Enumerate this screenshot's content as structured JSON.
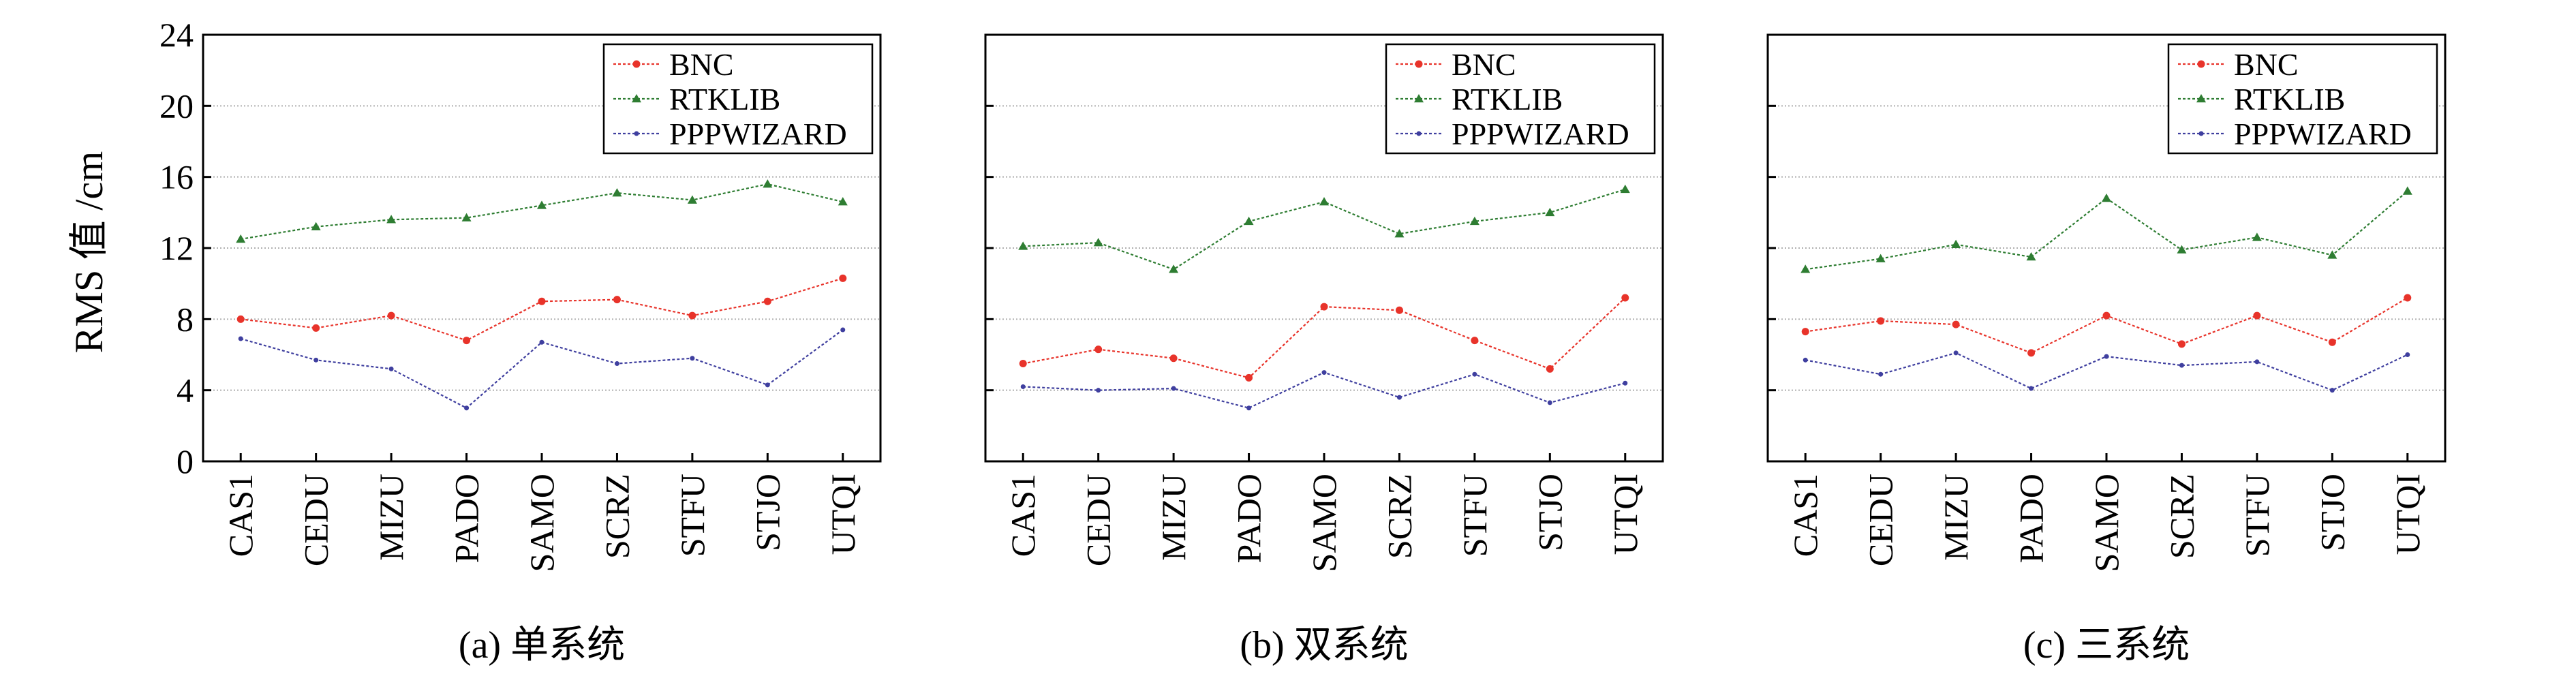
{
  "figure": {
    "ylabel": "RMS 值 /cm"
  },
  "colors": {
    "BNC": "#e8332a",
    "RTKLIB": "#2e7d32",
    "PPPWIZARD": "#3f3f9f",
    "grid": "#b0b0b0",
    "axis": "#000000"
  },
  "chart_data": [
    {
      "type": "line",
      "caption": "(a) 单系统",
      "categories": [
        "CAS1",
        "CEDU",
        "MIZU",
        "PADO",
        "SAMO",
        "SCRZ",
        "STFU",
        "STJO",
        "UTQI"
      ],
      "ylim": [
        0,
        24
      ],
      "yticks": [
        0,
        4,
        8,
        12,
        16,
        20,
        24
      ],
      "grid": "horizontal dotted",
      "legend_position": "top-right",
      "series": [
        {
          "name": "BNC",
          "values": [
            8.0,
            7.5,
            8.2,
            6.8,
            9.0,
            9.1,
            8.2,
            9.0,
            10.3
          ]
        },
        {
          "name": "RTKLIB",
          "values": [
            12.5,
            13.2,
            13.6,
            13.7,
            14.4,
            15.1,
            14.7,
            15.6,
            14.6
          ]
        },
        {
          "name": "PPPWIZARD",
          "values": [
            6.9,
            5.7,
            5.2,
            3.0,
            6.7,
            5.5,
            5.8,
            4.3,
            7.4
          ]
        }
      ]
    },
    {
      "type": "line",
      "caption": "(b) 双系统",
      "categories": [
        "CAS1",
        "CEDU",
        "MIZU",
        "PADO",
        "SAMO",
        "SCRZ",
        "STFU",
        "STJO",
        "UTQI"
      ],
      "ylim": [
        0,
        24
      ],
      "yticks": [
        0,
        4,
        8,
        12,
        16,
        20,
        24
      ],
      "grid": "horizontal dotted",
      "legend_position": "top-right",
      "series": [
        {
          "name": "BNC",
          "values": [
            5.5,
            6.3,
            5.8,
            4.7,
            8.7,
            8.5,
            6.8,
            5.2,
            9.2
          ]
        },
        {
          "name": "RTKLIB",
          "values": [
            12.1,
            12.3,
            10.8,
            13.5,
            14.6,
            12.8,
            13.5,
            14.0,
            15.3
          ]
        },
        {
          "name": "PPPWIZARD",
          "values": [
            4.2,
            4.0,
            4.1,
            3.0,
            5.0,
            3.6,
            4.9,
            3.3,
            4.4
          ]
        }
      ]
    },
    {
      "type": "line",
      "caption": "(c) 三系统",
      "categories": [
        "CAS1",
        "CEDU",
        "MIZU",
        "PADO",
        "SAMO",
        "SCRZ",
        "STFU",
        "STJO",
        "UTQI"
      ],
      "ylim": [
        0,
        24
      ],
      "yticks": [
        0,
        4,
        8,
        12,
        16,
        20,
        24
      ],
      "grid": "horizontal dotted",
      "legend_position": "top-right",
      "series": [
        {
          "name": "BNC",
          "values": [
            7.3,
            7.9,
            7.7,
            6.1,
            8.2,
            6.6,
            8.2,
            6.7,
            9.2
          ]
        },
        {
          "name": "RTKLIB",
          "values": [
            10.8,
            11.4,
            12.2,
            11.5,
            14.8,
            11.9,
            12.6,
            11.6,
            15.2
          ]
        },
        {
          "name": "PPPWIZARD",
          "values": [
            5.7,
            4.9,
            6.1,
            4.1,
            5.9,
            5.4,
            5.6,
            4.0,
            6.0
          ]
        }
      ]
    }
  ]
}
